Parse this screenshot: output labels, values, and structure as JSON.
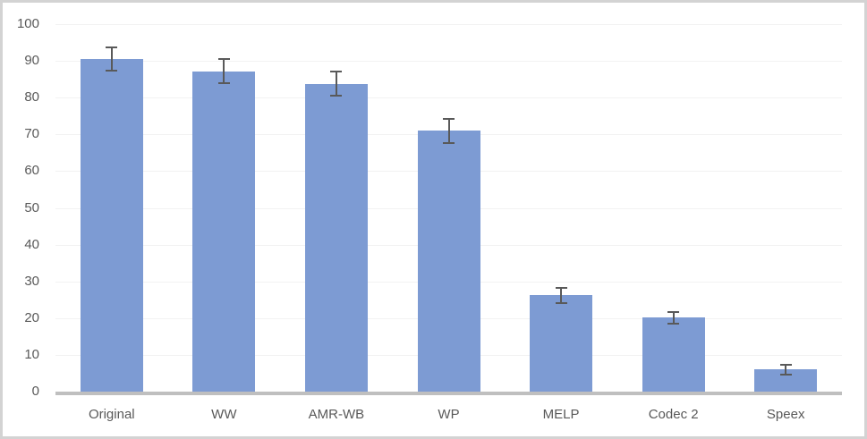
{
  "chart_data": {
    "type": "bar",
    "title": "",
    "xlabel": "",
    "ylabel": "",
    "categories": [
      "Original",
      "WW",
      "AMR-WB",
      "WP",
      "MELP",
      "Codec 2",
      "Speex"
    ],
    "values": [
      90.5,
      87.2,
      83.8,
      71.0,
      26.2,
      20.1,
      6.0
    ],
    "error_bars": [
      3.5,
      3.5,
      3.6,
      3.5,
      2.3,
      1.8,
      1.6
    ],
    "ylim": [
      0,
      100
    ],
    "ytick_step": 10,
    "ytick_labels": [
      "0",
      "10",
      "20",
      "30",
      "40",
      "50",
      "60",
      "70",
      "80",
      "90",
      "100"
    ],
    "grid": true,
    "legend": "none",
    "colors": {
      "bar_fill": "#7d9bd3",
      "error_bar": "#595959",
      "gridline": "#f2f2f2",
      "axis_line": "#bfbfbf",
      "tick_label": "#595959",
      "background": "#ffffff",
      "frame_border": "#d3d3d3"
    }
  }
}
